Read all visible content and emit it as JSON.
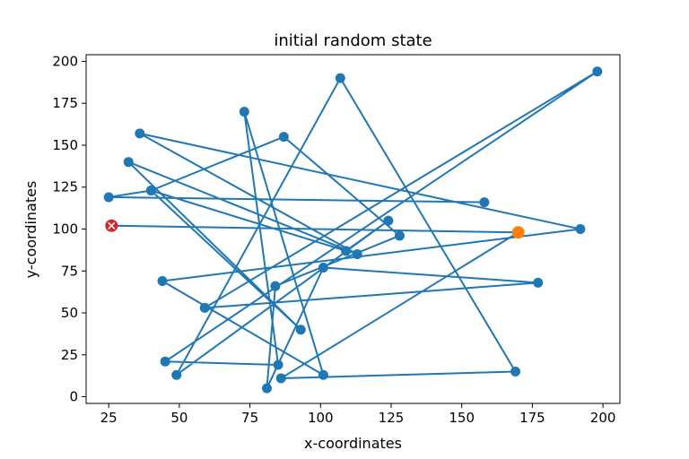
{
  "chart_data": {
    "type": "line",
    "title": "initial random state",
    "xlabel": "x-coordinates",
    "ylabel": "y-coordinates",
    "xlim": [
      17,
      206
    ],
    "ylim": [
      -4,
      204
    ],
    "xticks": [
      25,
      50,
      75,
      100,
      125,
      150,
      175,
      200
    ],
    "yticks": [
      0,
      25,
      50,
      75,
      100,
      125,
      150,
      175,
      200
    ],
    "grid": false,
    "series": [
      {
        "line_color": "#1f77b4",
        "marker": "circle",
        "points": [
          [
            26,
            102
          ],
          [
            170,
            98
          ],
          [
            86,
            11
          ],
          [
            169,
            15
          ],
          [
            107,
            190
          ],
          [
            49,
            13
          ],
          [
            124,
            105
          ],
          [
            109,
            87
          ],
          [
            40,
            123
          ],
          [
            93,
            40
          ],
          [
            32,
            140
          ],
          [
            113,
            85
          ],
          [
            36,
            157
          ],
          [
            192,
            100
          ],
          [
            44,
            69
          ],
          [
            101,
            13
          ],
          [
            73,
            170
          ],
          [
            85,
            19
          ],
          [
            45,
            21
          ],
          [
            198,
            194
          ],
          [
            59,
            53
          ],
          [
            177,
            68
          ],
          [
            101,
            77
          ],
          [
            81,
            5
          ],
          [
            84,
            66
          ],
          [
            128,
            96
          ],
          [
            87,
            155
          ],
          [
            40,
            123
          ],
          [
            25,
            119
          ],
          [
            158,
            116
          ]
        ]
      }
    ],
    "start_point": {
      "x": 26,
      "y": 102,
      "color": "#d62728",
      "marker": "x-circle"
    },
    "current_point": {
      "x": 170,
      "y": 98,
      "color": "#ff7f0e"
    }
  }
}
